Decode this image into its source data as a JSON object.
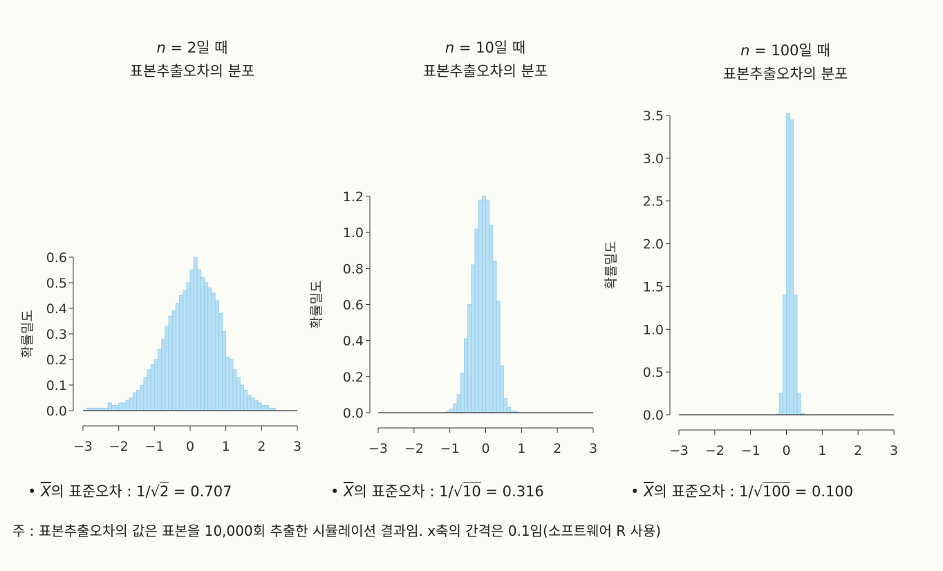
{
  "footnote": "주 : 표본추출오차의 값은 표본을 10,000회 추출한 시뮬레이션 결과임. x축의 간격은 0.1임(소프트웨어 R 사용)",
  "colors": {
    "bar_fill": "#b7e0f4",
    "bar_stroke": "#8fcbeb",
    "axis": "#333333"
  },
  "panels": [
    {
      "title_line1_n": "n",
      "title_line1_rest": " = 2일 때",
      "title_line2": "표본추출오차의 분포",
      "ylabel": "확률밀도",
      "se_prefix": "의 표준오차 : 1/",
      "se_sqrt_arg": "2",
      "se_suffix": " = 0.707"
    },
    {
      "title_line1_n": "n",
      "title_line1_rest": " = 10일 때",
      "title_line2": "표본추출오차의 분포",
      "ylabel": "확률밀도",
      "se_prefix": "의 표준오차 : 1/",
      "se_sqrt_arg": "10",
      "se_suffix": " = 0.316"
    },
    {
      "title_line1_n": "n",
      "title_line1_rest": " = 100일 때",
      "title_line2": "표본추출오차의 분포",
      "ylabel": "확률밀도",
      "se_prefix": "의 표준오차 : 1/",
      "se_sqrt_arg": "100",
      "se_suffix": " = 0.100"
    }
  ],
  "chart_data": [
    {
      "type": "bar",
      "xlim": [
        -3,
        3
      ],
      "ylim": [
        0,
        0.6
      ],
      "bin_width": 0.1,
      "xticks": [
        "−3",
        "−2",
        "−1",
        "0",
        "1",
        "2",
        "3"
      ],
      "yticks": [
        "0.0",
        "0.1",
        "0.2",
        "0.3",
        "0.4",
        "0.5",
        "0.6"
      ],
      "ylabel": "확률밀도",
      "bins_start": -2.9,
      "values": [
        0.01,
        0.01,
        0.01,
        0.01,
        0.01,
        0.01,
        0.03,
        0.02,
        0.02,
        0.03,
        0.03,
        0.04,
        0.05,
        0.07,
        0.08,
        0.1,
        0.13,
        0.16,
        0.18,
        0.2,
        0.24,
        0.28,
        0.33,
        0.37,
        0.39,
        0.42,
        0.45,
        0.47,
        0.5,
        0.55,
        0.6,
        0.55,
        0.52,
        0.5,
        0.48,
        0.46,
        0.43,
        0.38,
        0.31,
        0.21,
        0.2,
        0.16,
        0.13,
        0.1,
        0.08,
        0.06,
        0.05,
        0.04,
        0.03,
        0.02,
        0.02,
        0.01,
        0.01
      ]
    },
    {
      "type": "bar",
      "xlim": [
        -3,
        3
      ],
      "ylim": [
        0,
        1.2
      ],
      "bin_width": 0.1,
      "xticks": [
        "−3",
        "−2",
        "−1",
        "0",
        "1",
        "2",
        "3"
      ],
      "yticks": [
        "0.0",
        "0.2",
        "0.4",
        "0.6",
        "0.8",
        "1.0",
        "1.2"
      ],
      "ylabel": "확률밀도",
      "bins_start": -1.1,
      "values": [
        0.01,
        0.02,
        0.05,
        0.1,
        0.22,
        0.41,
        0.6,
        0.82,
        1.02,
        1.18,
        1.2,
        1.18,
        1.04,
        0.84,
        0.62,
        0.26,
        0.08,
        0.03,
        0.01,
        0.01
      ]
    },
    {
      "type": "bar",
      "xlim": [
        -3,
        3
      ],
      "ylim": [
        0,
        3.5
      ],
      "bin_width": 0.1,
      "xticks": [
        "−3",
        "−2",
        "−1",
        "0",
        "1",
        "2",
        "3"
      ],
      "yticks": [
        "0.0",
        "0.5",
        "1.0",
        "1.5",
        "2.0",
        "2.5",
        "3.0",
        "3.5"
      ],
      "ylabel": "확률밀도",
      "bins_start": -0.3,
      "values": [
        0.01,
        0.25,
        1.4,
        3.52,
        3.45,
        1.4,
        0.25,
        0.02
      ]
    }
  ]
}
